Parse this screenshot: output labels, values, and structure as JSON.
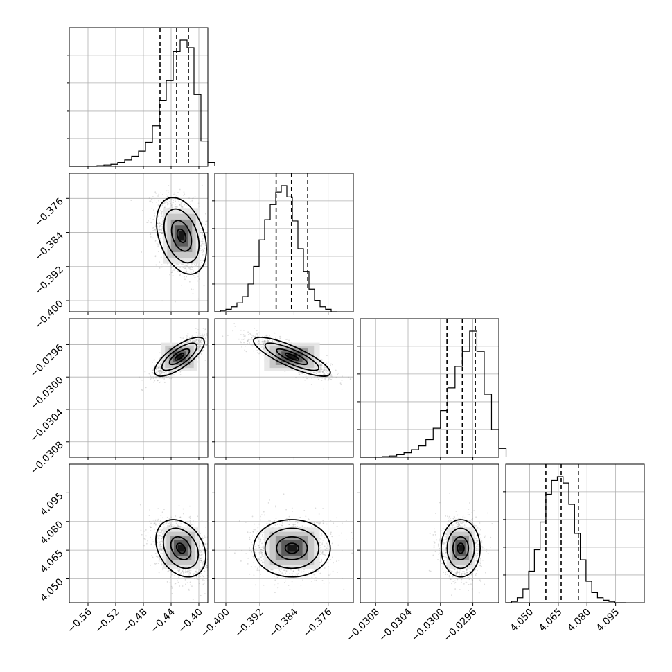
{
  "chart_data": {
    "type": "corner",
    "params": [
      {
        "ticks": [
          -0.56,
          -0.52,
          -0.48,
          -0.44,
          -0.4
        ],
        "tick_labels": [
          "−0.56",
          "−0.52",
          "−0.48",
          "−0.44",
          "−0.40"
        ],
        "range": [
          -0.587,
          -0.387
        ],
        "quantiles": [
          -0.456,
          -0.432,
          -0.415
        ],
        "hist_bins": [
          [
            -0.587,
            0
          ],
          [
            -0.577,
            0
          ],
          [
            -0.567,
            0
          ],
          [
            -0.557,
            0
          ],
          [
            -0.547,
            0.005
          ],
          [
            -0.537,
            0.01
          ],
          [
            -0.527,
            0.015
          ],
          [
            -0.517,
            0.03
          ],
          [
            -0.507,
            0.05
          ],
          [
            -0.497,
            0.08
          ],
          [
            -0.487,
            0.12
          ],
          [
            -0.477,
            0.19
          ],
          [
            -0.467,
            0.32
          ],
          [
            -0.457,
            0.52
          ],
          [
            -0.447,
            0.68
          ],
          [
            -0.437,
            0.91
          ],
          [
            -0.427,
            1.0
          ],
          [
            -0.417,
            0.94
          ],
          [
            -0.407,
            0.57
          ],
          [
            -0.397,
            0.2
          ],
          [
            -0.387,
            0.03
          ]
        ]
      },
      {
        "ticks": [
          -0.4,
          -0.392,
          -0.384,
          -0.376
        ],
        "tick_labels": [
          "−0.400",
          "−0.392",
          "−0.384",
          "−0.376"
        ],
        "range": [
          -0.4026,
          -0.3701
        ],
        "quantiles": [
          -0.3882,
          -0.3846,
          -0.3808
        ],
        "hist_bins": [
          [
            -0.4026,
            0
          ],
          [
            -0.4013,
            0.01
          ],
          [
            -0.4,
            0.02
          ],
          [
            -0.3987,
            0.04
          ],
          [
            -0.3974,
            0.07
          ],
          [
            -0.3961,
            0.12
          ],
          [
            -0.3948,
            0.22
          ],
          [
            -0.3935,
            0.36
          ],
          [
            -0.3922,
            0.57
          ],
          [
            -0.3909,
            0.73
          ],
          [
            -0.3896,
            0.85
          ],
          [
            -0.3883,
            0.95
          ],
          [
            -0.387,
            1.0
          ],
          [
            -0.3857,
            0.91
          ],
          [
            -0.3844,
            0.72
          ],
          [
            -0.3831,
            0.5
          ],
          [
            -0.3818,
            0.32
          ],
          [
            -0.3805,
            0.18
          ],
          [
            -0.3792,
            0.09
          ],
          [
            -0.3779,
            0.04
          ],
          [
            -0.3766,
            0.02
          ],
          [
            -0.3753,
            0
          ]
        ]
      },
      {
        "ticks": [
          -0.0308,
          -0.0304,
          -0.03,
          -0.0296
        ],
        "tick_labels": [
          "−0.0308",
          "−0.0304",
          "−0.0300",
          "−0.0296"
        ],
        "range": [
          -0.03099,
          -0.02928
        ],
        "quantiles": [
          -0.02992,
          -0.02973,
          -0.02957
        ],
        "hist_bins": [
          [
            -0.03099,
            0
          ],
          [
            -0.0309,
            0
          ],
          [
            -0.03081,
            0
          ],
          [
            -0.03072,
            0.005
          ],
          [
            -0.03063,
            0.01
          ],
          [
            -0.03054,
            0.02
          ],
          [
            -0.03045,
            0.035
          ],
          [
            -0.03036,
            0.06
          ],
          [
            -0.03027,
            0.09
          ],
          [
            -0.03018,
            0.14
          ],
          [
            -0.03009,
            0.23
          ],
          [
            -0.03,
            0.37
          ],
          [
            -0.02991,
            0.55
          ],
          [
            -0.02982,
            0.72
          ],
          [
            -0.02973,
            0.84
          ],
          [
            -0.02964,
            1.0
          ],
          [
            -0.02955,
            0.84
          ],
          [
            -0.02946,
            0.5
          ],
          [
            -0.02937,
            0.22
          ],
          [
            -0.02928,
            0.07
          ]
        ]
      },
      {
        "ticks": [
          4.05,
          4.065,
          4.08,
          4.095
        ],
        "tick_labels": [
          "4.050",
          "4.065",
          "4.080",
          "4.095"
        ],
        "range": [
          4.0375,
          4.11
        ],
        "quantiles": [
          4.0585,
          4.0665,
          4.0755
        ],
        "hist_bins": [
          [
            4.0375,
            0
          ],
          [
            4.0405,
            0.01
          ],
          [
            4.0435,
            0.04
          ],
          [
            4.0465,
            0.11
          ],
          [
            4.0495,
            0.25
          ],
          [
            4.0525,
            0.42
          ],
          [
            4.0555,
            0.64
          ],
          [
            4.0585,
            0.86
          ],
          [
            4.0615,
            0.97
          ],
          [
            4.0645,
            1.0
          ],
          [
            4.0675,
            0.95
          ],
          [
            4.0705,
            0.78
          ],
          [
            4.0735,
            0.55
          ],
          [
            4.0765,
            0.34
          ],
          [
            4.0795,
            0.17
          ],
          [
            4.0825,
            0.08
          ],
          [
            4.0855,
            0.04
          ],
          [
            4.0885,
            0.02
          ],
          [
            4.0915,
            0.01
          ],
          [
            4.0945,
            0
          ],
          [
            4.0975,
            0
          ]
        ]
      }
    ],
    "pairs": [
      {
        "row": 1,
        "col": 0,
        "center": [
          -0.425,
          -0.3848
        ],
        "spread": [
          0.018,
          0.0045
        ],
        "corr": -0.35
      },
      {
        "row": 2,
        "col": 0,
        "center": [
          -0.428,
          -0.02975
        ],
        "spread": [
          0.018,
          0.00012
        ],
        "corr": 0.75
      },
      {
        "row": 2,
        "col": 1,
        "center": [
          -0.3845,
          -0.02975
        ],
        "spread": [
          0.0045,
          0.00012
        ],
        "corr": -0.82
      },
      {
        "row": 3,
        "col": 0,
        "center": [
          -0.426,
          4.066
        ],
        "spread": [
          0.018,
          0.0075
        ],
        "corr": -0.3
      },
      {
        "row": 3,
        "col": 1,
        "center": [
          -0.3845,
          4.066
        ],
        "spread": [
          0.0045,
          0.0075
        ],
        "corr": 0.0
      },
      {
        "row": 3,
        "col": 2,
        "center": [
          -0.02975,
          4.066
        ],
        "spread": [
          0.00012,
          0.0075
        ],
        "corr": 0.0
      }
    ],
    "grid": true,
    "colors": {
      "line": "#000000",
      "grid": "#b0b0b0",
      "points": "#9a9a9a"
    }
  }
}
